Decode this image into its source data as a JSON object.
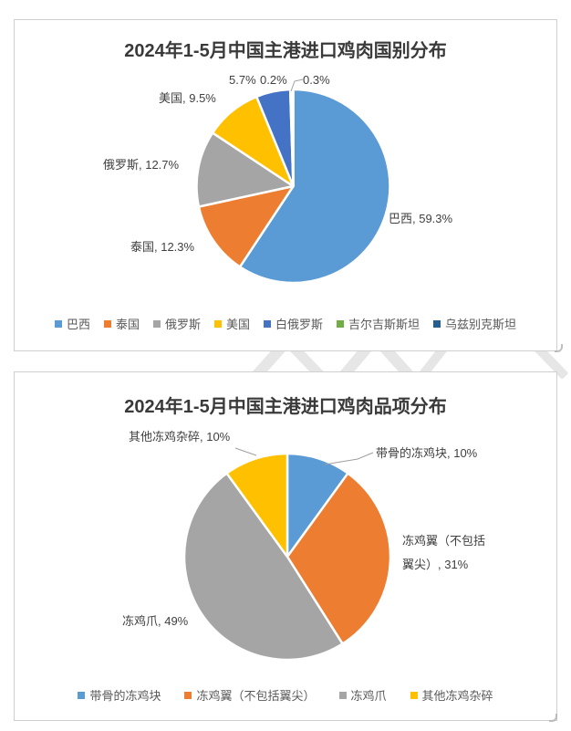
{
  "charts": [
    {
      "title": "2024年1-5月中国主港进口鸡肉国别分布",
      "chart_data": {
        "type": "pie",
        "title": "2024年1-5月中国主港进口鸡肉国别分布",
        "categories": [
          "巴西",
          "泰国",
          "俄罗斯",
          "美国",
          "白俄罗斯",
          "吉尔吉斯斯坦",
          "乌兹别克斯坦"
        ],
        "values": [
          59.3,
          12.3,
          12.7,
          9.5,
          5.7,
          0.2,
          0.3
        ],
        "unit": "%",
        "colors": [
          "#5B9BD5",
          "#ED7D31",
          "#A5A5A5",
          "#FFC000",
          "#4472C4",
          "#70AD47",
          "#255E91"
        ],
        "legend_position": "bottom",
        "start_angle": 0,
        "direction": "clockwise"
      },
      "labels": [
        {
          "text": "巴西, 59.3%"
        },
        {
          "text": "泰国, 12.3%"
        },
        {
          "text": "俄罗斯, 12.7%"
        },
        {
          "text": "美国, 9.5%"
        },
        {
          "text": "5.7%"
        },
        {
          "text": "0.2%"
        },
        {
          "text": "0.3%"
        }
      ],
      "legend": [
        {
          "label": "巴西",
          "color": "#5B9BD5"
        },
        {
          "label": "泰国",
          "color": "#ED7D31"
        },
        {
          "label": "俄罗斯",
          "color": "#A5A5A5"
        },
        {
          "label": "美国",
          "color": "#FFC000"
        },
        {
          "label": "白俄罗斯",
          "color": "#4472C4"
        },
        {
          "label": "吉尔吉斯斯坦",
          "color": "#70AD47"
        },
        {
          "label": "乌兹别克斯坦",
          "color": "#255E91"
        }
      ]
    },
    {
      "title": "2024年1-5月中国主港进口鸡肉品项分布",
      "chart_data": {
        "type": "pie",
        "title": "2024年1-5月中国主港进口鸡肉品项分布",
        "categories": [
          "带骨的冻鸡块",
          "冻鸡翼（不包括翼尖）",
          "冻鸡爪",
          "其他冻鸡杂碎"
        ],
        "values": [
          10,
          31,
          49,
          10
        ],
        "unit": "%",
        "colors": [
          "#5B9BD5",
          "#ED7D31",
          "#A5A5A5",
          "#FFC000"
        ],
        "legend_position": "bottom",
        "start_angle": 0,
        "direction": "clockwise"
      },
      "labels": [
        {
          "text": "其他冻鸡杂碎, 10%"
        },
        {
          "text": "带骨的冻鸡块, 10%"
        },
        {
          "text": "冻鸡翼（不包括翼尖）, 31%"
        },
        {
          "text": "冻鸡爪, 49%"
        }
      ],
      "legend": [
        {
          "label": "带骨的冻鸡块",
          "color": "#5B9BD5"
        },
        {
          "label": "冻鸡翼（不包括翼尖）",
          "color": "#ED7D31"
        },
        {
          "label": "冻鸡爪",
          "color": "#A5A5A5"
        },
        {
          "label": "其他冻鸡杂碎",
          "color": "#FFC000"
        }
      ]
    }
  ]
}
